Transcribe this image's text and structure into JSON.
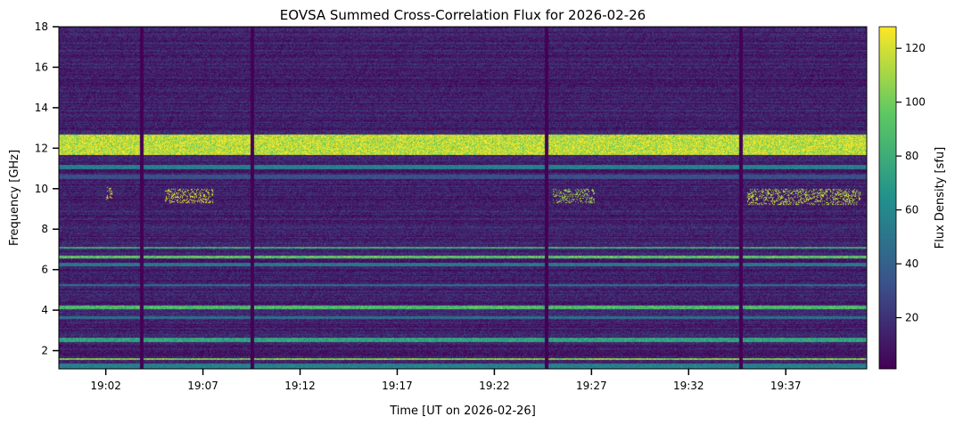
{
  "chart_data": {
    "type": "heatmap",
    "title": "EOVSA Summed Cross-Correlation Flux for 2026-02-26",
    "xlabel": "Time [UT on 2026-02-26]",
    "ylabel": "Frequency [GHz]",
    "colorbar_label": "Flux Density [sfu]",
    "colormap": "viridis",
    "colormap_stops": [
      "#440154",
      "#3b528b",
      "#21918c",
      "#5ec962",
      "#fde725"
    ],
    "xlim": [
      "18:59:35",
      "19:41:10"
    ],
    "ylim": [
      1.1,
      18.0
    ],
    "clim": [
      1,
      128
    ],
    "x_ticks": [
      "19:02",
      "19:07",
      "19:12",
      "19:17",
      "19:22",
      "19:27",
      "19:32",
      "19:37"
    ],
    "x_tick_minutes": [
      2,
      7,
      12,
      17,
      22,
      27,
      32,
      37
    ],
    "y_ticks": [
      2,
      4,
      6,
      8,
      10,
      12,
      14,
      16,
      18
    ],
    "colorbar_ticks": [
      20,
      40,
      60,
      80,
      100,
      120
    ],
    "gap_columns_utc": [
      "19:03:50",
      "19:09:30",
      "19:24:40",
      "19:34:40"
    ],
    "intensity_bands": [
      {
        "freq_ghz": [
          11.7,
          12.7
        ],
        "flux_sfu": 125
      },
      {
        "freq_ghz": [
          11.0,
          11.2
        ],
        "flux_sfu": 60
      },
      {
        "freq_ghz": [
          10.5,
          10.7
        ],
        "flux_sfu": 35
      },
      {
        "freq_ghz": [
          7.05,
          7.15
        ],
        "flux_sfu": 85
      },
      {
        "freq_ghz": [
          6.6,
          6.7
        ],
        "flux_sfu": 100
      },
      {
        "freq_ghz": [
          6.2,
          6.35
        ],
        "flux_sfu": 55
      },
      {
        "freq_ghz": [
          5.2,
          5.3
        ],
        "flux_sfu": 50
      },
      {
        "freq_ghz": [
          4.05,
          4.25
        ],
        "flux_sfu": 95
      },
      {
        "freq_ghz": [
          3.6,
          3.7
        ],
        "flux_sfu": 50
      },
      {
        "freq_ghz": [
          2.45,
          2.65
        ],
        "flux_sfu": 80
      },
      {
        "freq_ghz": [
          1.55,
          1.65
        ],
        "flux_sfu": 110
      },
      {
        "freq_ghz": [
          1.1,
          1.4
        ],
        "flux_sfu": 60
      }
    ],
    "burst_patches": [
      {
        "time_utc": [
          "19:02:00",
          "19:02:20"
        ],
        "freq_ghz": [
          9.5,
          10.1
        ],
        "flux_sfu": 120
      },
      {
        "time_utc": [
          "19:05:00",
          "19:07:30"
        ],
        "freq_ghz": [
          9.3,
          10.0
        ],
        "flux_sfu": 120
      },
      {
        "time_utc": [
          "19:25:00",
          "19:27:10"
        ],
        "freq_ghz": [
          9.3,
          10.0
        ],
        "flux_sfu": 110
      },
      {
        "time_utc": [
          "19:35:00",
          "19:40:50"
        ],
        "freq_ghz": [
          9.2,
          10.0
        ],
        "flux_sfu": 115
      }
    ],
    "grid": false
  }
}
